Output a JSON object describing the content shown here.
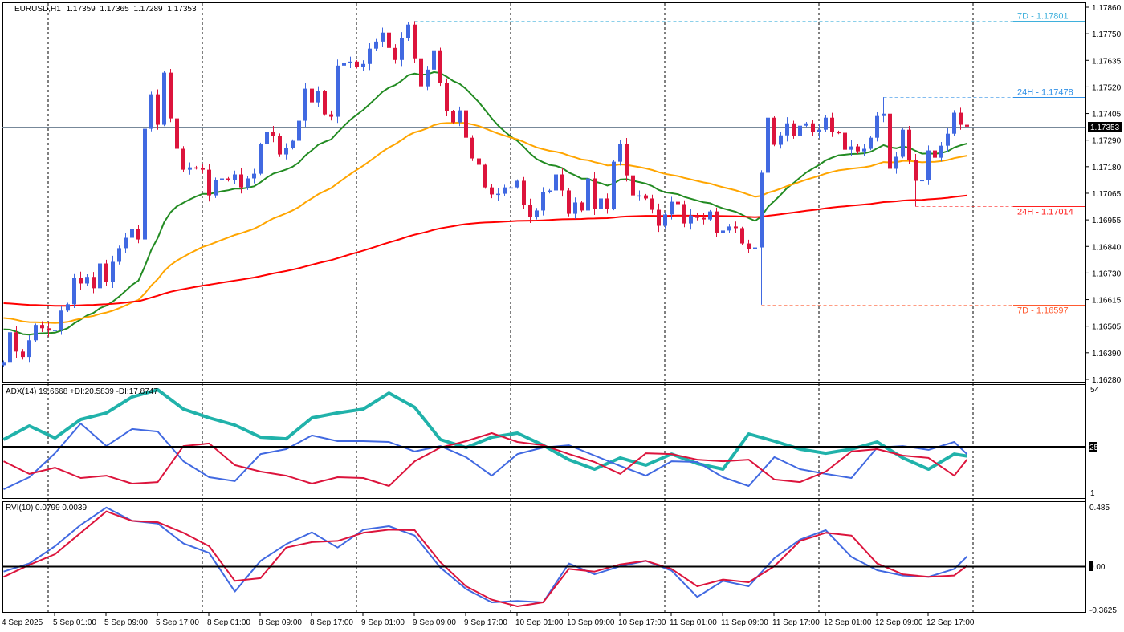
{
  "symbol": {
    "name": "EURUSD,H1",
    "open": "1.17359",
    "high": "1.17365",
    "low": "1.17289",
    "close": "1.17353"
  },
  "price_axis": {
    "ticks": [
      "1.17860",
      "1.17750",
      "1.17635",
      "1.17520",
      "1.17405",
      "1.17290",
      "1.17180",
      "1.17065",
      "1.16955",
      "1.16840",
      "1.16730",
      "1.16615",
      "1.16505",
      "1.16390",
      "1.16280"
    ],
    "current_price": "1.17353"
  },
  "levels": [
    {
      "label": "7D - 1.17801",
      "price": 1.17801,
      "kind": "high",
      "start_bar": 64,
      "color": "#3fb0dc"
    },
    {
      "label": "24H - 1.17478",
      "price": 1.17478,
      "kind": "high",
      "start_bar": 137,
      "color": "#2e8fe6"
    },
    {
      "label": "24H - 1.17014",
      "price": 1.17014,
      "kind": "low",
      "start_bar": 142,
      "color": "#ff2020"
    },
    {
      "label": "7D - 1.16597",
      "price": 1.16597,
      "kind": "low",
      "start_bar": 118,
      "color": "#ff5a30"
    }
  ],
  "time_axis": {
    "labels": [
      "4 Sep 2025",
      "5 Sep 01:00",
      "5 Sep 09:00",
      "5 Sep 17:00",
      "8 Sep 01:00",
      "8 Sep 09:00",
      "8 Sep 17:00",
      "9 Sep 01:00",
      "9 Sep 09:00",
      "9 Sep 17:00",
      "10 Sep 01:00",
      "10 Sep 09:00",
      "10 Sep 17:00",
      "11 Sep 01:00",
      "11 Sep 09:00",
      "11 Sep 17:00",
      "12 Sep 01:00",
      "12 Sep 09:00",
      "12 Sep 17:00"
    ]
  },
  "colors": {
    "bull": "#4169e1",
    "bear": "#dc143c",
    "ma_fast": "#228b22",
    "ma_mid": "#ffa500",
    "ma_slow": "#ff0000",
    "current_price_line": "#778899"
  },
  "chart_data": [
    {
      "type": "candlestick",
      "title": "EURUSD,H1",
      "timeframe": "H1",
      "ylim": [
        1.1628,
        1.1786
      ],
      "first_open": 1.1634,
      "close": [
        1.16354,
        1.1648,
        1.16398,
        1.16375,
        1.16446,
        1.16511,
        1.16497,
        1.16487,
        1.1649,
        1.16572,
        1.16599,
        1.16711,
        1.16687,
        1.16715,
        1.16667,
        1.16772,
        1.16694,
        1.16779,
        1.16837,
        1.16881,
        1.16919,
        1.16874,
        1.17344,
        1.1749,
        1.17361,
        1.17582,
        1.17388,
        1.17259,
        1.1717,
        1.1718,
        1.17177,
        1.1717,
        1.17061,
        1.17126,
        1.17133,
        1.17126,
        1.1715,
        1.17095,
        1.17133,
        1.17153,
        1.17279,
        1.1733,
        1.17313,
        1.17235,
        1.17262,
        1.17293,
        1.17378,
        1.17514,
        1.17456,
        1.17503,
        1.17405,
        1.17395,
        1.17612,
        1.17622,
        1.17629,
        1.17605,
        1.17619,
        1.17684,
        1.17714,
        1.17752,
        1.17687,
        1.17636,
        1.17728,
        1.17786,
        1.17643,
        1.17524,
        1.17595,
        1.17677,
        1.17537,
        1.17418,
        1.17371,
        1.17422,
        1.17306,
        1.17218,
        1.17191,
        1.17095,
        1.17065,
        1.17068,
        1.17095,
        1.17095,
        1.17123,
        1.17021,
        1.1697,
        1.16997,
        1.17075,
        1.17082,
        1.1715,
        1.17082,
        1.16983,
        1.17031,
        1.16997,
        1.17133,
        1.17004,
        1.17048,
        1.17004,
        1.17204,
        1.17279,
        1.17146,
        1.17061,
        1.17061,
        1.17048,
        1.17,
        1.16932,
        1.1698,
        1.17034,
        1.17024,
        1.16942,
        1.16976,
        1.16966,
        1.16959,
        1.16993,
        1.16902,
        1.16912,
        1.16929,
        1.16922,
        1.16857,
        1.16834,
        1.1684,
        1.17157,
        1.17391,
        1.17276,
        1.17316,
        1.17367,
        1.17313,
        1.17357,
        1.17367,
        1.1733,
        1.1734,
        1.17391,
        1.1733,
        1.17327,
        1.17255,
        1.17269,
        1.17248,
        1.17259,
        1.17306,
        1.17398,
        1.17408,
        1.17174,
        1.17225,
        1.1734,
        1.17211,
        1.17123,
        1.17126,
        1.17252,
        1.17221,
        1.17272,
        1.17323,
        1.17412,
        1.17361,
        1.17353
      ],
      "moving_averages": [
        {
          "color": "#228b22"
        },
        {
          "color": "#ffa500"
        },
        {
          "color": "#ff0000"
        }
      ]
    },
    {
      "type": "line",
      "title": "ADX(14) 19.6668 +DI:20.5839 -DI:17.8747",
      "ylim": [
        1,
        54
      ],
      "level": 25,
      "axis_labels": [
        "54",
        "25",
        "1"
      ],
      "series": [
        {
          "name": "ADX",
          "color": "#20b2aa",
          "values": [
            28.1,
            35.1,
            28.9,
            38.4,
            41.7,
            49.9,
            53.6,
            43.7,
            39.2,
            35.5,
            29.3,
            28.5,
            39.2,
            41.7,
            43.7,
            51.9,
            44.6,
            28.1,
            24.0,
            29.3,
            31.4,
            25.2,
            17.8,
            12.9,
            18.7,
            15.0,
            20.7,
            15.8,
            12.9,
            31.0,
            27.3,
            23.2,
            21.1,
            23.2,
            26.9,
            18.7,
            12.9,
            20.7,
            19.6668
          ]
        },
        {
          "name": "+DI",
          "color": "#4169e1",
          "values": [
            2.6,
            8.8,
            21.1,
            36.3,
            24.8,
            33.5,
            32.2,
            17.0,
            8.8,
            6.8,
            20.7,
            23.2,
            30.2,
            27.3,
            27.3,
            26.9,
            22.0,
            24.8,
            19.1,
            9.6,
            20.7,
            24.0,
            25.2,
            19.9,
            14.6,
            9.6,
            17.0,
            16.6,
            8.8,
            4.3,
            19.1,
            12.9,
            10.5,
            8.4,
            24.0,
            24.8,
            22.8,
            26.9,
            20.5839
          ]
        },
        {
          "name": "-DI",
          "color": "#dc143c",
          "values": [
            17.0,
            10.5,
            13.7,
            8.4,
            9.6,
            5.5,
            6.3,
            24.8,
            26.1,
            15.0,
            11.7,
            9.6,
            5.5,
            8.8,
            8.4,
            4.3,
            17.0,
            24.0,
            27.3,
            31.4,
            26.9,
            25.2,
            20.7,
            16.6,
            10.5,
            21.1,
            20.7,
            17.8,
            17.0,
            17.8,
            7.6,
            6.3,
            11.7,
            22.0,
            23.2,
            19.9,
            18.7,
            9.6,
            17.8747
          ]
        }
      ]
    },
    {
      "type": "line",
      "title": "RVI(10) 0.0799 0.0039",
      "ylim": [
        -0.3625,
        0.485
      ],
      "level": 0,
      "axis_labels": [
        "0.485",
        "0.00",
        "-0.3625"
      ],
      "series": [
        {
          "name": "RVI",
          "color": "#4169e1",
          "values": [
            -0.044,
            0.022,
            0.164,
            0.338,
            0.48,
            0.371,
            0.349,
            0.186,
            0.109,
            -0.207,
            0.044,
            0.181,
            0.277,
            0.153,
            0.299,
            0.328,
            0.251,
            -0.011,
            -0.186,
            -0.295,
            -0.284,
            -0.295,
            0.022,
            -0.066,
            0.0,
            0.044,
            -0.037,
            -0.251,
            -0.12,
            -0.164,
            0.066,
            0.218,
            0.295,
            0.076,
            -0.033,
            -0.076,
            -0.087,
            -0.022,
            0.0799
          ]
        },
        {
          "name": "Signal",
          "color": "#dc143c",
          "values": [
            -0.087,
            0.011,
            0.098,
            0.273,
            0.448,
            0.371,
            0.36,
            0.273,
            0.164,
            -0.12,
            -0.098,
            0.153,
            0.197,
            0.207,
            0.273,
            0.299,
            0.295,
            0.033,
            -0.164,
            -0.273,
            -0.328,
            -0.295,
            -0.022,
            -0.044,
            0.015,
            0.044,
            -0.022,
            -0.164,
            -0.109,
            -0.131,
            0.0,
            0.207,
            0.273,
            0.251,
            0.022,
            -0.066,
            -0.087,
            -0.076,
            0.0039
          ]
        }
      ]
    }
  ]
}
